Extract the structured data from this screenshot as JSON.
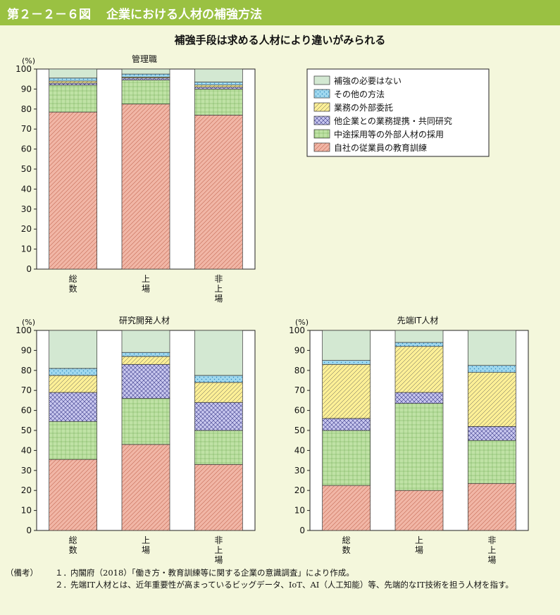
{
  "figure": {
    "number": "第２－２－６図",
    "title": "企業における人材の補強方法",
    "subtitle": "補強手段は求める人材により違いがみられる"
  },
  "legend": [
    {
      "key": "none",
      "label": "補強の必要はない",
      "color": "#d3e8d2",
      "pattern": "solid"
    },
    {
      "key": "other",
      "label": "その他の方法",
      "color": "#9fd8ef",
      "pattern": "dots"
    },
    {
      "key": "outsource",
      "label": "業務の外部委託",
      "color": "#fcef96",
      "pattern": "diag"
    },
    {
      "key": "alliance",
      "label": "他企業との業務提携・共同研究",
      "color": "#c9c8ef",
      "pattern": "cross"
    },
    {
      "key": "midcareer",
      "label": "中途採用等の外部人材の採用",
      "color": "#bfe2a5",
      "pattern": "grid"
    },
    {
      "key": "training",
      "label": "自社の従業員の教育訓練",
      "color": "#f1b6a6",
      "pattern": "diag2"
    }
  ],
  "chart_data": [
    {
      "type": "bar",
      "stacked": true,
      "title": "管理職",
      "ylabel": "(%)",
      "ylim": [
        0,
        100
      ],
      "yticks": [
        0,
        10,
        20,
        30,
        40,
        50,
        60,
        70,
        80,
        90,
        100
      ],
      "categories": [
        "総数",
        "上場",
        "非上場"
      ],
      "series": [
        {
          "name": "自社の従業員の教育訓練",
          "values": [
            78.5,
            82.5,
            77
          ]
        },
        {
          "name": "中途採用等の外部人材の採用",
          "values": [
            13.5,
            12,
            13
          ]
        },
        {
          "name": "他企業との業務提携・共同研究",
          "values": [
            1,
            1,
            1
          ]
        },
        {
          "name": "業務の外部委託",
          "values": [
            1,
            0.5,
            1
          ]
        },
        {
          "name": "その他の方法",
          "values": [
            1.5,
            1.5,
            1.5
          ]
        },
        {
          "name": "補強の必要はない",
          "values": [
            4.5,
            2.5,
            6.5
          ]
        }
      ]
    },
    {
      "type": "bar",
      "stacked": true,
      "title": "研究開発人材",
      "ylabel": "(%)",
      "ylim": [
        0,
        100
      ],
      "yticks": [
        0,
        10,
        20,
        30,
        40,
        50,
        60,
        70,
        80,
        90,
        100
      ],
      "categories": [
        "総数",
        "上場",
        "非上場"
      ],
      "series": [
        {
          "name": "自社の従業員の教育訓練",
          "values": [
            35.5,
            43,
            33
          ]
        },
        {
          "name": "中途採用等の外部人材の採用",
          "values": [
            19,
            23,
            17
          ]
        },
        {
          "name": "他企業との業務提携・共同研究",
          "values": [
            14.5,
            17,
            14
          ]
        },
        {
          "name": "業務の外部委託",
          "values": [
            8.5,
            4,
            10
          ]
        },
        {
          "name": "その他の方法",
          "values": [
            3.5,
            2,
            3.5
          ]
        },
        {
          "name": "補強の必要はない",
          "values": [
            19,
            11,
            22.5
          ]
        }
      ]
    },
    {
      "type": "bar",
      "stacked": true,
      "title": "先端IT人材",
      "ylabel": "(%)",
      "ylim": [
        0,
        100
      ],
      "yticks": [
        0,
        10,
        20,
        30,
        40,
        50,
        60,
        70,
        80,
        90,
        100
      ],
      "categories": [
        "総数",
        "上場",
        "非上場"
      ],
      "series": [
        {
          "name": "自社の従業員の教育訓練",
          "values": [
            22.5,
            20,
            23.5
          ]
        },
        {
          "name": "中途採用等の外部人材の採用",
          "values": [
            27.5,
            43.5,
            21.5
          ]
        },
        {
          "name": "他企業との業務提携・共同研究",
          "values": [
            6,
            5.5,
            7
          ]
        },
        {
          "name": "業務の外部委託",
          "values": [
            27,
            23,
            27
          ]
        },
        {
          "name": "その他の方法",
          "values": [
            2,
            2,
            3.5
          ]
        },
        {
          "name": "補強の必要はない",
          "values": [
            15,
            6,
            17.5
          ]
        }
      ]
    }
  ],
  "notes": {
    "lead": "（備考）",
    "items": [
      {
        "num": "１．",
        "text": "内閣府（2018）「働き方・教育訓練等に関する企業の意識調査」により作成。"
      },
      {
        "num": "２．",
        "text": "先端IT人材とは、近年重要性が高まっているビッグデータ、IoT、AI（人工知能）等、先端的なIT技術を担う人材を指す。"
      }
    ]
  }
}
